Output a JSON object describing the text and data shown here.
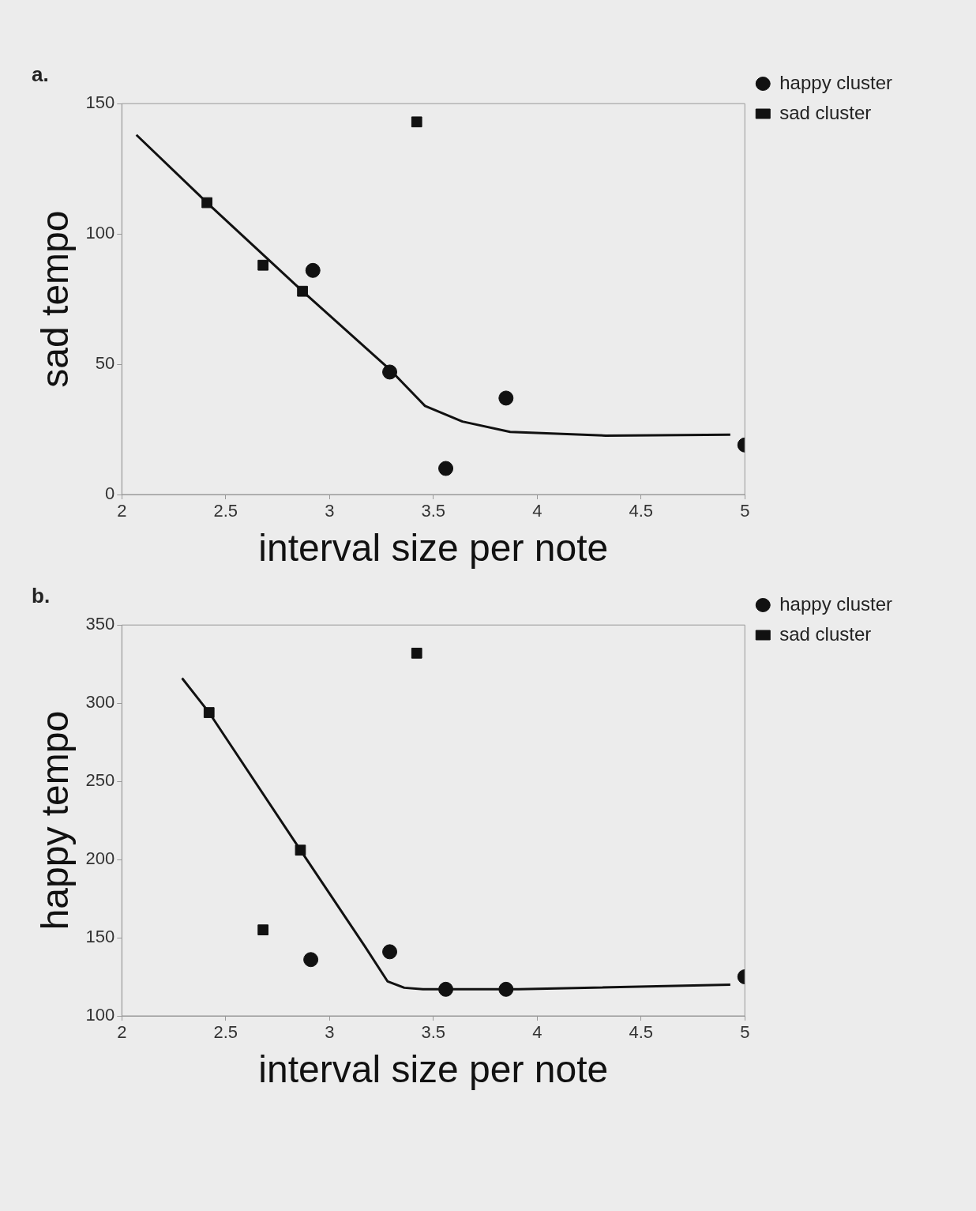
{
  "chart_data": [
    {
      "type": "scatter",
      "title": "a.",
      "xlabel": "interval size per note",
      "ylabel": "sad tempo",
      "xlim": [
        2,
        5
      ],
      "xticks": [
        2,
        2.5,
        3,
        3.5,
        4,
        4.5,
        5
      ],
      "ylim": [
        0,
        150
      ],
      "yticks": [
        0,
        50,
        100,
        150
      ],
      "grid": false,
      "legend": "top right",
      "series": [
        {
          "name": "happy cluster",
          "color": "#111111",
          "marker": "circle",
          "x": [
            2.92,
            3.29,
            3.85,
            3.56,
            5.0
          ],
          "values": [
            86,
            47,
            37,
            10,
            19
          ]
        },
        {
          "name": "sad cluster",
          "color": "#111111",
          "marker": "square",
          "x": [
            2.41,
            2.68,
            2.87,
            3.42
          ],
          "values": [
            112,
            88,
            78,
            143
          ]
        },
        {
          "type": "line",
          "color": "#111111",
          "marker": "none",
          "line_style": "solid",
          "x": [
            2.07,
            2.41,
            2.87,
            3.29,
            3.46,
            3.64,
            3.87,
            4.33,
            4.93
          ],
          "values": [
            138,
            112,
            78,
            48,
            34,
            28,
            24,
            22.6,
            23
          ]
        }
      ]
    },
    {
      "type": "scatter",
      "title": "b.",
      "xlabel": "interval size per note",
      "ylabel": "happy tempo",
      "xlim": [
        2,
        5
      ],
      "xticks": [
        2,
        2.5,
        3,
        3.5,
        4,
        4.5,
        5
      ],
      "ylim": [
        100,
        350
      ],
      "yticks": [
        100,
        150,
        200,
        250,
        300,
        350
      ],
      "grid": false,
      "legend": "top right",
      "series": [
        {
          "name": "happy cluster",
          "color": "#111111",
          "marker": "circle",
          "x": [
            2.91,
            3.29,
            3.56,
            3.85,
            5.0
          ],
          "values": [
            136,
            141,
            117,
            117,
            125
          ]
        },
        {
          "name": "sad cluster",
          "color": "#111111",
          "marker": "square",
          "x": [
            2.42,
            2.86,
            2.68,
            3.42
          ],
          "values": [
            294,
            206,
            155,
            332
          ]
        },
        {
          "type": "line",
          "color": "#111111",
          "marker": "none",
          "line_style": "solid",
          "x": [
            2.29,
            2.42,
            2.86,
            3.17,
            3.28,
            3.36,
            3.45,
            3.91,
            4.93
          ],
          "values": [
            316,
            294,
            206,
            144.5,
            122,
            118,
            117,
            117,
            120
          ]
        }
      ]
    }
  ]
}
